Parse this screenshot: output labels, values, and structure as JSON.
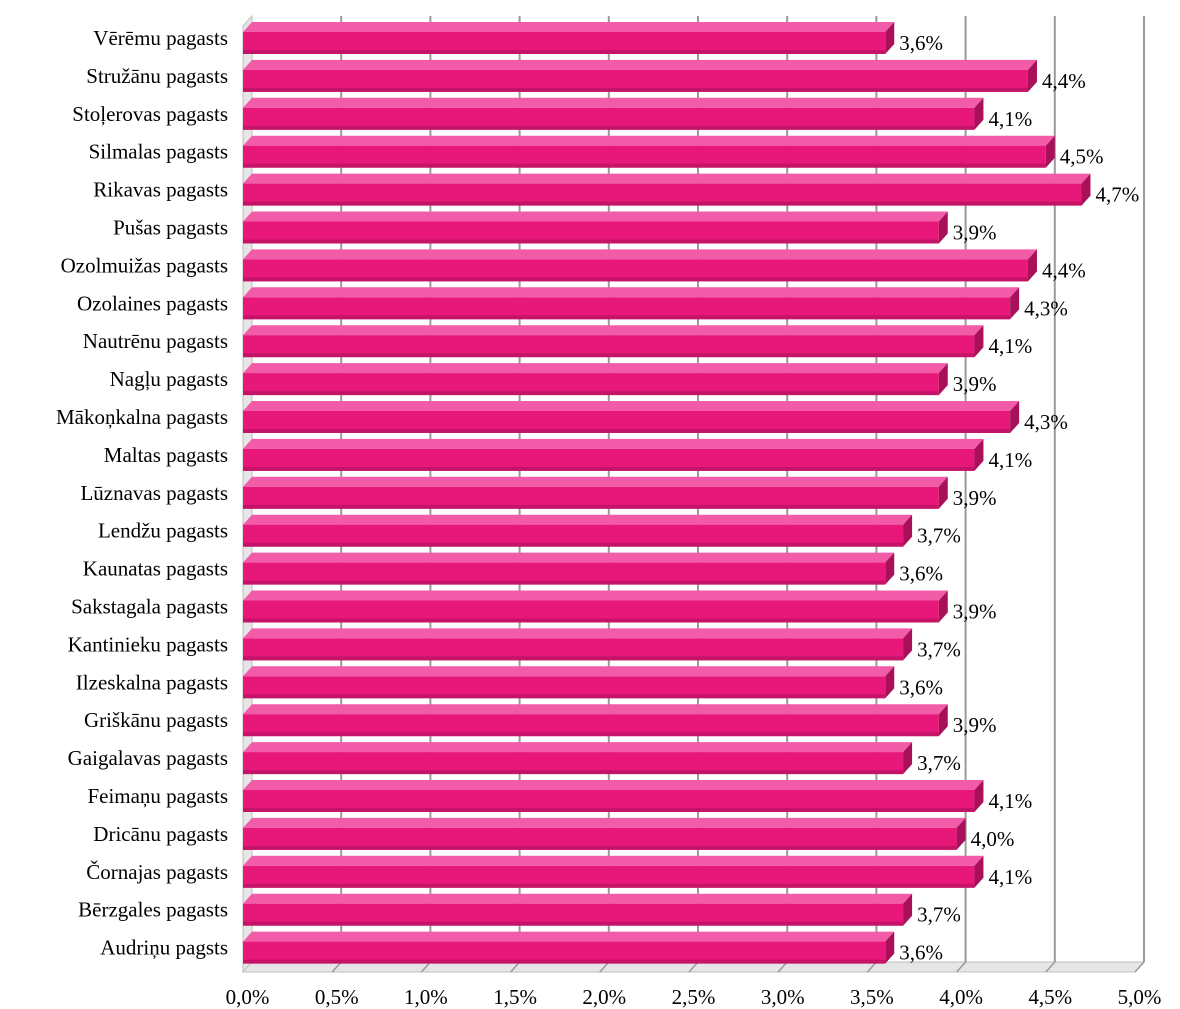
{
  "chart_data": {
    "type": "bar",
    "orientation": "horizontal",
    "categories": [
      "Vērēmu pagasts",
      "Stružānu pagasts",
      "Stoļerovas pagasts",
      "Silmalas pagasts",
      "Rikavas pagasts",
      "Pušas pagasts",
      "Ozolmuižas pagasts",
      "Ozolaines pagasts",
      "Nautrēnu pagasts",
      "Nagļu pagasts",
      "Mākoņkalna pagasts",
      "Maltas pagasts",
      "Lūznavas pagasts",
      "Lendžu pagasts",
      "Kaunatas pagasts",
      "Sakstagala pagasts",
      "Kantinieku pagasts",
      "Ilzeskalna pagasts",
      "Griškānu pagasts",
      "Gaigalavas pagasts",
      "Feimaņu pagasts",
      "Dricānu pagasts",
      "Čornajas pagasts",
      "Bērzgales pagasts",
      "Audriņu pagsts"
    ],
    "values": [
      3.6,
      4.4,
      4.1,
      4.5,
      4.7,
      3.9,
      4.4,
      4.3,
      4.1,
      3.9,
      4.3,
      4.1,
      3.9,
      3.7,
      3.6,
      3.9,
      3.7,
      3.6,
      3.9,
      3.7,
      4.1,
      4.0,
      4.1,
      3.7,
      3.6
    ],
    "data_labels": [
      "3,6%",
      "4,4%",
      "4,1%",
      "4,5%",
      "4,7%",
      "3,9%",
      "4,4%",
      "4,3%",
      "4,1%",
      "3,9%",
      "4,3%",
      "4,1%",
      "3,9%",
      "3,7%",
      "3,6%",
      "3,9%",
      "3,7%",
      "3,6%",
      "3,9%",
      "3,7%",
      "4,1%",
      "4,0%",
      "4,1%",
      "3,7%",
      "3,6%"
    ],
    "x_ticks": [
      0,
      0.5,
      1.0,
      1.5,
      2.0,
      2.5,
      3.0,
      3.5,
      4.0,
      4.5,
      5.0
    ],
    "x_tick_labels": [
      "0,0%",
      "0,5%",
      "1,0%",
      "1,5%",
      "2,0%",
      "2,5%",
      "3,0%",
      "3,5%",
      "4,0%",
      "4,5%",
      "5,0%"
    ],
    "xlim": [
      0,
      5
    ],
    "title": "",
    "xlabel": "",
    "ylabel": "",
    "grid": true,
    "legend": "none",
    "style": "3d",
    "colors": {
      "bar_front": "#E8177A",
      "bar_top": "#F25BA8",
      "bar_side": "#A8105A",
      "gridline": "#9A9A9A",
      "wall": "#BFBFBF"
    }
  }
}
